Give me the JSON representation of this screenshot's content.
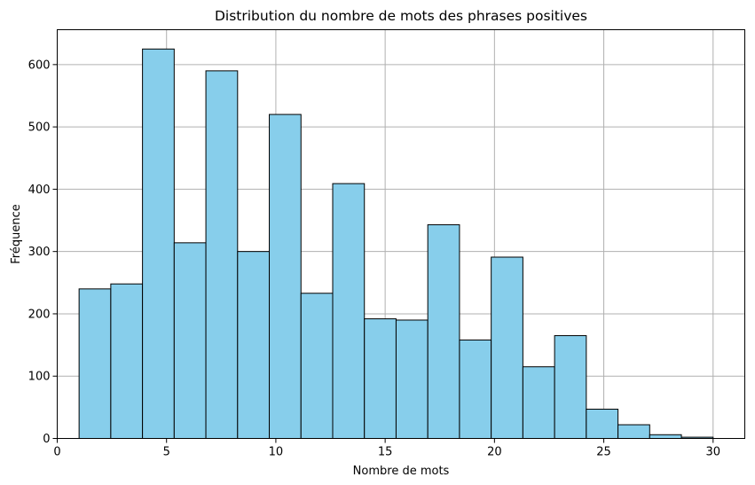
{
  "chart_data": {
    "type": "histogram",
    "title": "Distribution du nombre de mots des phrases positives",
    "xlabel": "Nombre de mots",
    "ylabel": "Fréquence",
    "xlim": [
      0,
      31.45
    ],
    "ylim": [
      0,
      656
    ],
    "x_ticks": [
      0,
      5,
      10,
      15,
      20,
      25,
      30
    ],
    "y_ticks": [
      0,
      100,
      200,
      300,
      400,
      500,
      600
    ],
    "grid": true,
    "bar_color": "#87ceeb",
    "edge_color": "#000000",
    "bin_edges": [
      1,
      2.45,
      3.9,
      5.35,
      6.8,
      8.25,
      9.7,
      11.15,
      12.6,
      14.05,
      15.5,
      16.95,
      18.4,
      19.85,
      21.3,
      22.75,
      24.2,
      25.65,
      27.1,
      28.55,
      30
    ],
    "values": [
      240,
      248,
      625,
      314,
      590,
      300,
      520,
      233,
      409,
      192,
      190,
      343,
      158,
      291,
      115,
      165,
      47,
      22,
      6,
      2
    ]
  }
}
